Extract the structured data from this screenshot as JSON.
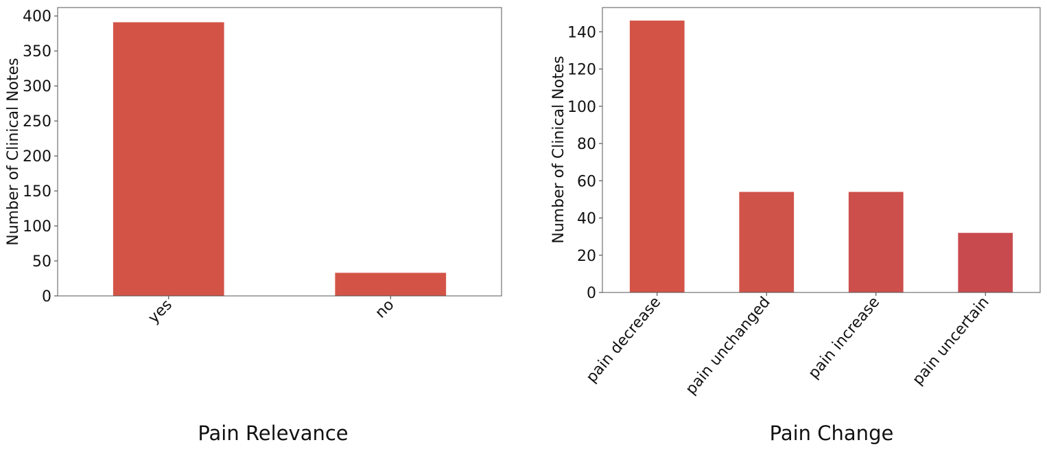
{
  "chart_data": [
    {
      "type": "bar",
      "title": "Pain Relevance",
      "xlabel": "",
      "ylabel": "Number of Clinical Notes",
      "categories": [
        "yes",
        "no"
      ],
      "values": [
        391,
        33
      ],
      "ylim": [
        0,
        412
      ],
      "yticks": [
        0,
        50,
        100,
        150,
        200,
        250,
        300,
        350,
        400
      ],
      "grid": false,
      "colors": [
        "#d35447",
        "#d35447"
      ]
    },
    {
      "type": "bar",
      "title": "Pain Change",
      "xlabel": "",
      "ylabel": "Number of Clinical Notes",
      "categories": [
        "pain decrease",
        "pain unchanged",
        "pain increase",
        "pain uncertain"
      ],
      "values": [
        146,
        54,
        54,
        32
      ],
      "ylim": [
        0,
        153
      ],
      "yticks": [
        0,
        20,
        40,
        60,
        80,
        100,
        120,
        140
      ],
      "grid": false,
      "colors": [
        "#d35447",
        "#d0534a",
        "#cc4f4c",
        "#c94a4e"
      ]
    }
  ]
}
